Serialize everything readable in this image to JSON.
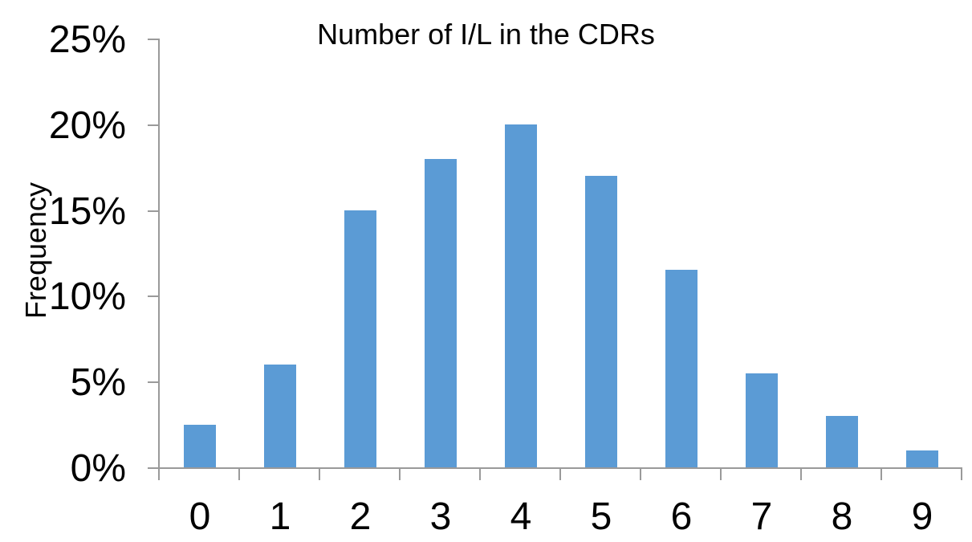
{
  "chart_data": {
    "type": "bar",
    "title": "Number of I/L in the CDRs",
    "ylabel": "Frequency",
    "categories": [
      "0",
      "1",
      "2",
      "3",
      "4",
      "5",
      "6",
      "7",
      "8",
      "9"
    ],
    "values": [
      2.5,
      6,
      15,
      18,
      20,
      17,
      11.5,
      5.5,
      3,
      1
    ],
    "ylim": [
      0,
      25
    ],
    "yticks": [
      0,
      5,
      10,
      15,
      20,
      25
    ],
    "ytick_labels": [
      "0%",
      "5%",
      "10%",
      "15%",
      "20%",
      "25%"
    ],
    "grid": false,
    "legend": "none",
    "colors": {
      "bar": "#5B9BD5",
      "axis": "#9A9A9A",
      "text": "#000000",
      "background": "#FFFFFF"
    }
  }
}
